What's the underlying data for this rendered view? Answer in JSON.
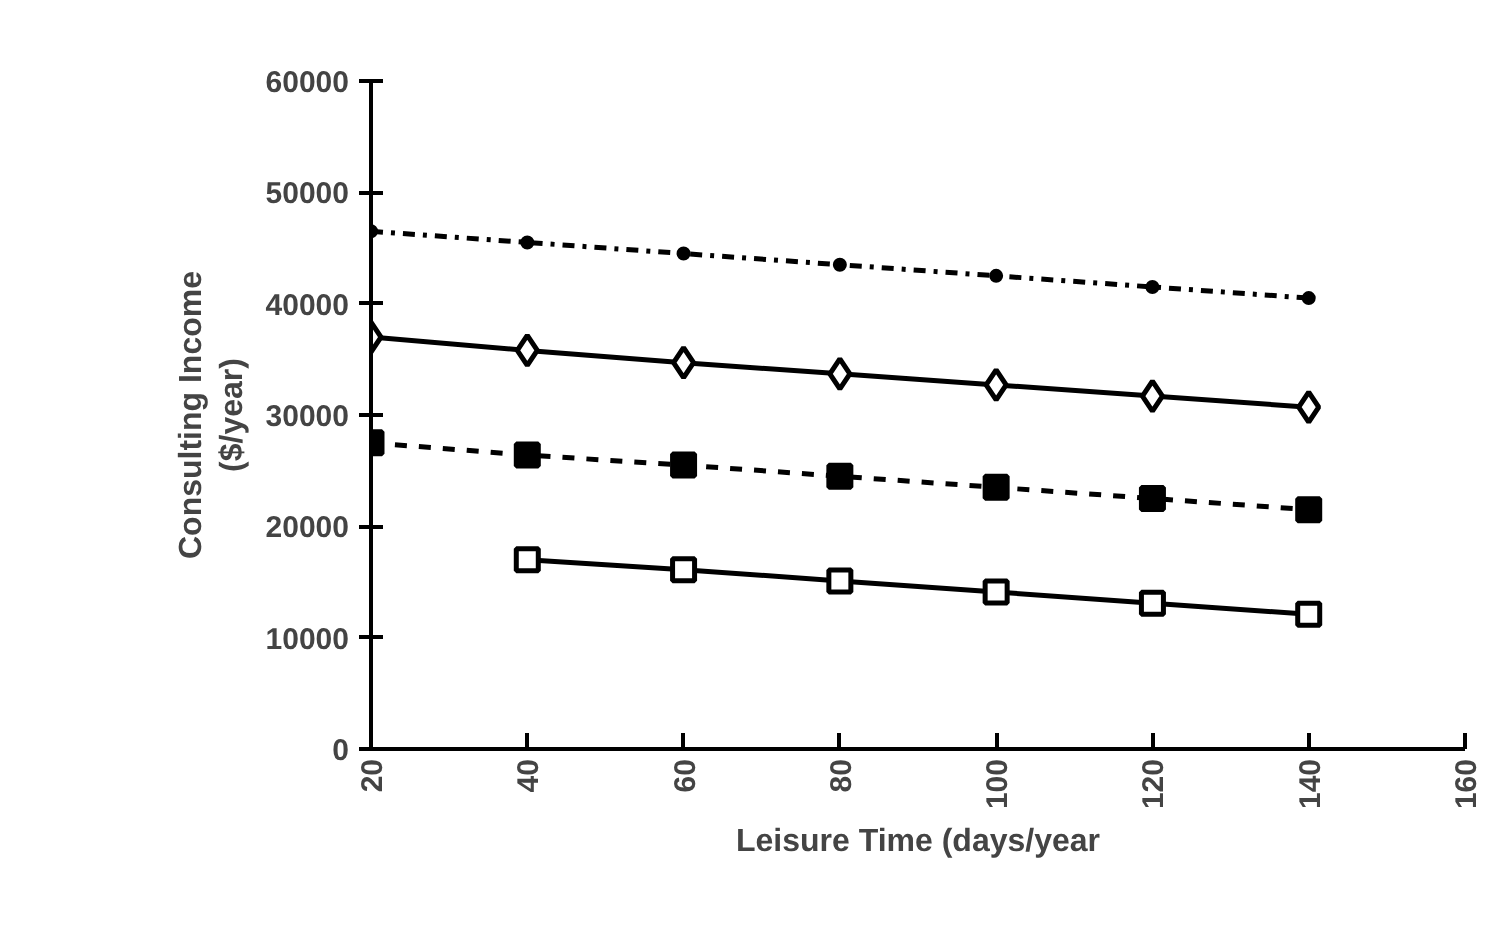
{
  "chart_data": {
    "type": "line",
    "xlabel": "Leisure Time (days/year",
    "ylabel": "Consulting Income\n($/year)",
    "x": [
      20,
      40,
      60,
      80,
      100,
      120,
      140
    ],
    "series": [
      {
        "color": "#000000",
        "marker": "circle",
        "line_style": "dashdot",
        "values": [
          46500,
          45500,
          44500,
          43500,
          42500,
          41500,
          40500
        ]
      },
      {
        "color": "#000000",
        "marker": "diamond",
        "line_style": "solid",
        "values": [
          37000,
          35800,
          34700,
          33700,
          32700,
          31700,
          30700
        ]
      },
      {
        "color": "#000000",
        "marker": "square",
        "line_style": "dashed",
        "values": [
          27500,
          26400,
          25500,
          24500,
          23500,
          22500,
          21500
        ]
      },
      {
        "color": "#000000",
        "marker": "square",
        "line_style": "solid",
        "values": [
          null,
          17000,
          16100,
          15100,
          14100,
          13100,
          12100
        ]
      }
    ],
    "xlim": [
      20,
      160
    ],
    "xticks": [
      20,
      40,
      60,
      80,
      100,
      120,
      140,
      160
    ],
    "ylim": [
      0,
      60000
    ],
    "yticks": [
      0,
      10000,
      20000,
      30000,
      40000,
      50000,
      60000
    ],
    "grid": false
  }
}
